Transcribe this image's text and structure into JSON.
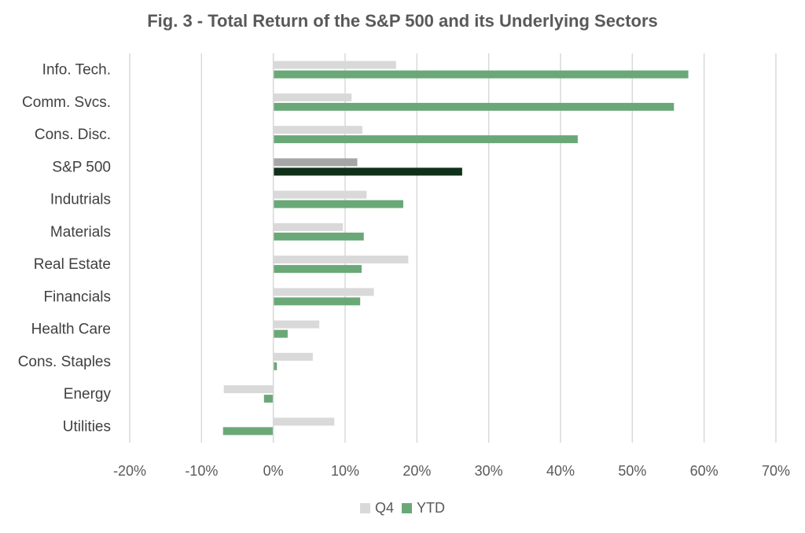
{
  "chart_data": {
    "type": "bar",
    "orientation": "horizontal",
    "title": "Fig. 3 - Total Return of the S&P 500 and its Underlying Sectors",
    "categories": [
      "Info. Tech.",
      "Comm. Svcs.",
      "Cons. Disc.",
      "S&P 500",
      "Indutrials",
      "Materials",
      "Real Estate",
      "Financials",
      "Health Care",
      "Cons. Staples",
      "Energy",
      "Utilities"
    ],
    "series": [
      {
        "name": "Q4",
        "color": "#d9d9d9",
        "values": [
          17.1,
          10.9,
          12.4,
          11.7,
          13.0,
          9.7,
          18.8,
          14.0,
          6.4,
          5.5,
          -6.9,
          8.5
        ],
        "highlight": {
          "S&P 500": "#a6a6a6"
        }
      },
      {
        "name": "YTD",
        "color": "#6aa878",
        "values": [
          57.8,
          55.8,
          42.4,
          26.3,
          18.1,
          12.6,
          12.3,
          12.1,
          2.0,
          0.5,
          -1.3,
          -7.0
        ],
        "highlight": {
          "S&P 500": "#10301a"
        }
      }
    ],
    "x_ticks": [
      "-20%",
      "-10%",
      "0%",
      "10%",
      "20%",
      "30%",
      "40%",
      "50%",
      "60%",
      "70%"
    ],
    "xlim": [
      -20,
      70
    ],
    "grid": "vertical",
    "legend_position": "bottom"
  }
}
